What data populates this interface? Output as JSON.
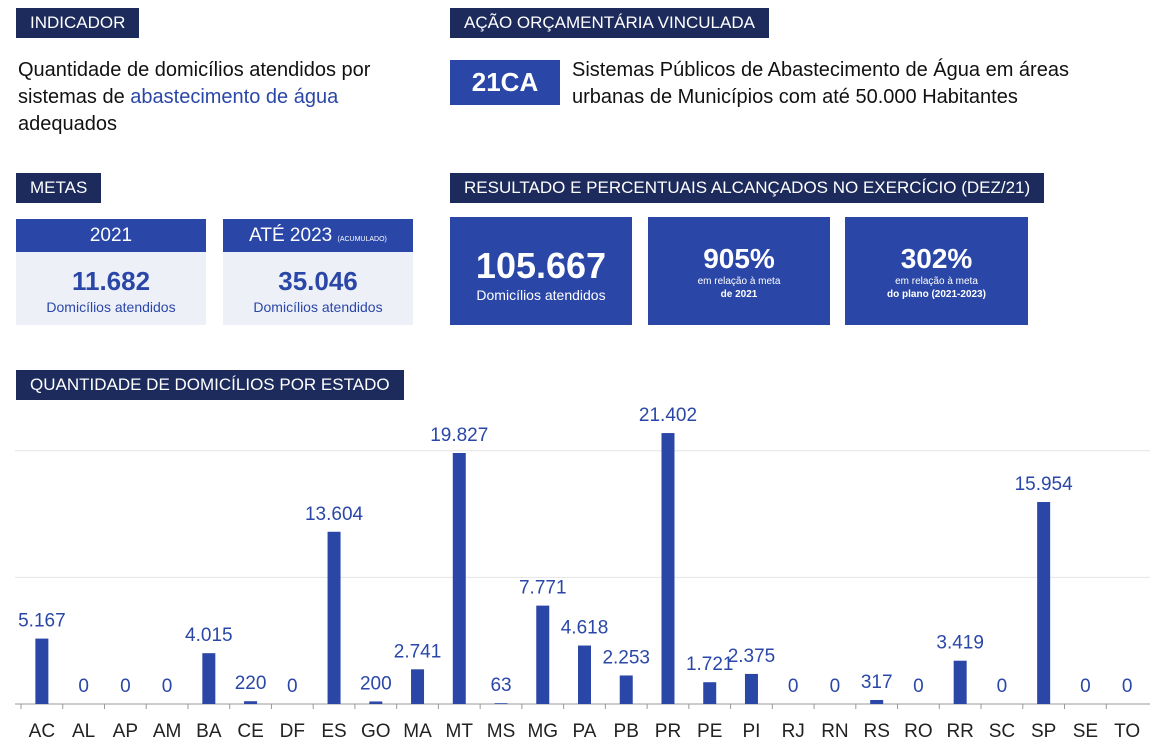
{
  "indicator": {
    "label": "INDICADOR",
    "text_before": "Quantidade de domicílios atendidos por sistemas de",
    "text_highlight": "abastecimento de água",
    "text_after": "adequados"
  },
  "action": {
    "label": "AÇÃO ORÇAMENTÁRIA VINCULADA",
    "code": "21CA",
    "description": "Sistemas Públicos de Abastecimento de Água em áreas urbanas de Municípios com até 50.000 Habitantes"
  },
  "goals": {
    "label": "METAS",
    "cards": [
      {
        "header": "2021",
        "value": "11.682",
        "caption": "Domicílios atendidos"
      },
      {
        "header": "ATÉ 2023",
        "header_note": "(ACUMULADO)",
        "value": "35.046",
        "caption": "Domicílios atendidos"
      }
    ]
  },
  "results": {
    "label": "RESULTADO E PERCENTUAIS ALCANÇADOS NO EXERCÍCIO (DEZ/21)",
    "cards": [
      {
        "value": "105.667",
        "caption": "Domicílios atendidos"
      },
      {
        "value": "905%",
        "caption": "em relação à meta",
        "caption_2": "de 2021"
      },
      {
        "value": "302%",
        "caption": "em relação à meta",
        "caption_2": "do plano (2021-2023)"
      }
    ]
  },
  "chart_data": {
    "type": "bar",
    "title": "QUANTIDADE DE DOMICÍLIOS POR ESTADO",
    "categories": [
      "AC",
      "AL",
      "AP",
      "AM",
      "BA",
      "CE",
      "DF",
      "ES",
      "GO",
      "MA",
      "MT",
      "MS",
      "MG",
      "PA",
      "PB",
      "PR",
      "PE",
      "PI",
      "RJ",
      "RN",
      "RS",
      "RO",
      "RR",
      "SC",
      "SP",
      "SE",
      "TO"
    ],
    "values": [
      5167,
      0,
      0,
      0,
      4015,
      220,
      0,
      13604,
      200,
      2741,
      19827,
      63,
      7771,
      4618,
      2253,
      21402,
      1721,
      2375,
      0,
      0,
      317,
      0,
      3419,
      0,
      15954,
      0,
      0
    ],
    "value_labels": [
      "5.167",
      "0",
      "0",
      "0",
      "4.015",
      "220",
      "0",
      "13.604",
      "200",
      "2.741",
      "19.827",
      "63",
      "7.771",
      "4.618",
      "2.253",
      "21.402",
      "1.721",
      "2.375",
      "0",
      "0",
      "317",
      "0",
      "3.419",
      "0",
      "15.954",
      "0",
      "0"
    ],
    "color": "#2a47a8",
    "ylim": [
      0,
      25000
    ],
    "yticks": [
      0,
      10000,
      20000
    ],
    "grid": true
  }
}
